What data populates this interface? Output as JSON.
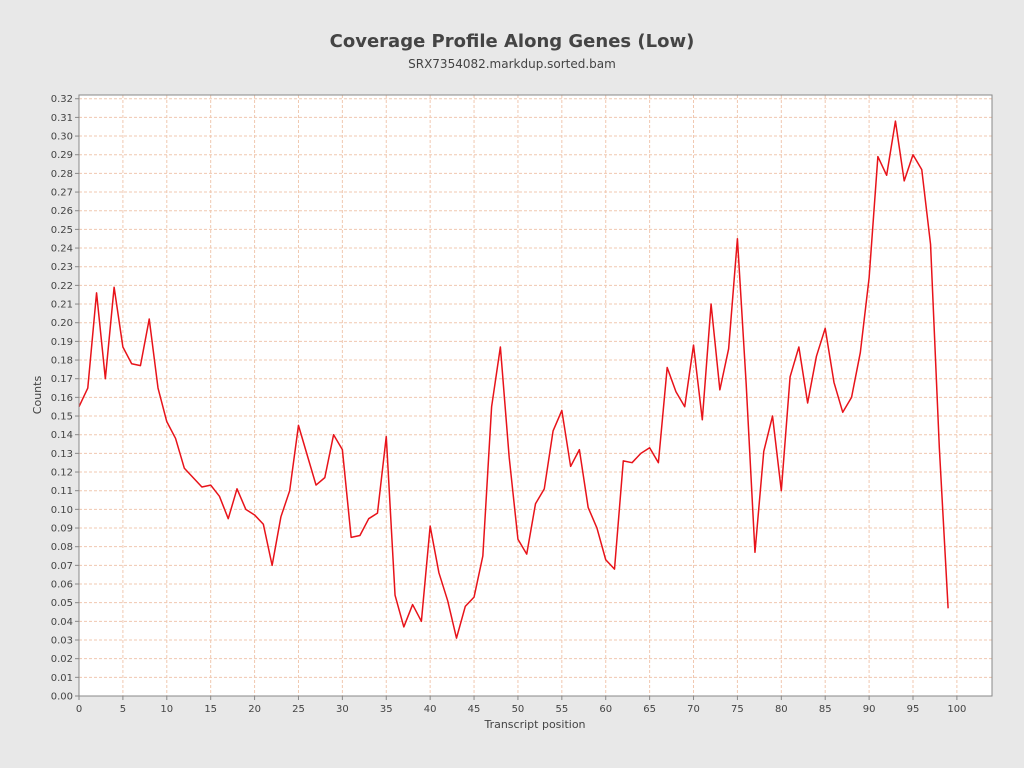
{
  "chart_data": {
    "type": "line",
    "title": "Coverage Profile Along Genes (Low)",
    "subtitle": "SRX7354082.markdup.sorted.bam",
    "xlabel": "Transcript position",
    "ylabel": "Counts",
    "xlim": [
      0,
      104
    ],
    "ylim": [
      0,
      0.322
    ],
    "xticks": [
      0,
      5,
      10,
      15,
      20,
      25,
      30,
      35,
      40,
      45,
      50,
      55,
      60,
      65,
      70,
      75,
      80,
      85,
      90,
      95,
      100
    ],
    "yticks": [
      0.0,
      0.01,
      0.02,
      0.03,
      0.04,
      0.05,
      0.06,
      0.07,
      0.08,
      0.09,
      0.1,
      0.11,
      0.12,
      0.13,
      0.14,
      0.15,
      0.16,
      0.17,
      0.18,
      0.19,
      0.2,
      0.21,
      0.22,
      0.23,
      0.24,
      0.25,
      0.26,
      0.27,
      0.28,
      0.29,
      0.3,
      0.31,
      0.32
    ],
    "grid": true,
    "colors": {
      "line": "#e8131a",
      "grid": "#f0c8b0",
      "plot_background": "#ffffff",
      "page_background": "#e8e8e8",
      "axis": "#888888"
    },
    "series": [
      {
        "x": [
          0,
          1,
          2,
          3,
          4,
          5,
          6,
          7,
          8,
          9,
          10,
          11,
          12,
          13,
          14,
          15,
          16,
          17,
          18,
          19,
          20,
          21,
          22,
          23,
          24,
          25,
          26,
          27,
          28,
          29,
          30,
          31,
          32,
          33,
          34,
          35,
          36,
          37,
          38,
          39,
          40,
          41,
          42,
          43,
          44,
          45,
          46,
          47,
          48,
          49,
          50,
          51,
          52,
          53,
          54,
          55,
          56,
          57,
          58,
          59,
          60,
          61,
          62,
          63,
          64,
          65,
          66,
          67,
          68,
          69,
          70,
          71,
          72,
          73,
          74,
          75,
          76,
          77,
          78,
          79,
          80,
          81,
          82,
          83,
          84,
          85,
          86,
          87,
          88,
          89,
          90,
          91,
          92,
          93,
          94,
          95,
          96,
          97,
          98,
          99
        ],
        "values": [
          0.155,
          0.165,
          0.216,
          0.17,
          0.219,
          0.187,
          0.178,
          0.177,
          0.202,
          0.165,
          0.147,
          0.138,
          0.122,
          0.117,
          0.112,
          0.113,
          0.107,
          0.095,
          0.111,
          0.1,
          0.097,
          0.092,
          0.07,
          0.096,
          0.11,
          0.145,
          0.129,
          0.113,
          0.117,
          0.14,
          0.132,
          0.085,
          0.086,
          0.095,
          0.098,
          0.139,
          0.054,
          0.037,
          0.049,
          0.04,
          0.091,
          0.066,
          0.051,
          0.031,
          0.048,
          0.053,
          0.075,
          0.155,
          0.187,
          0.128,
          0.084,
          0.076,
          0.103,
          0.111,
          0.142,
          0.153,
          0.123,
          0.132,
          0.101,
          0.09,
          0.073,
          0.068,
          0.126,
          0.125,
          0.13,
          0.133,
          0.125,
          0.176,
          0.163,
          0.155,
          0.188,
          0.148,
          0.21,
          0.164,
          0.186,
          0.245,
          0.167,
          0.077,
          0.131,
          0.15,
          0.11,
          0.171,
          0.187,
          0.157,
          0.182,
          0.197,
          0.168,
          0.152,
          0.16,
          0.184,
          0.224,
          0.289,
          0.279,
          0.308,
          0.276,
          0.29,
          0.282,
          0.242,
          0.133,
          0.047
        ]
      }
    ]
  }
}
